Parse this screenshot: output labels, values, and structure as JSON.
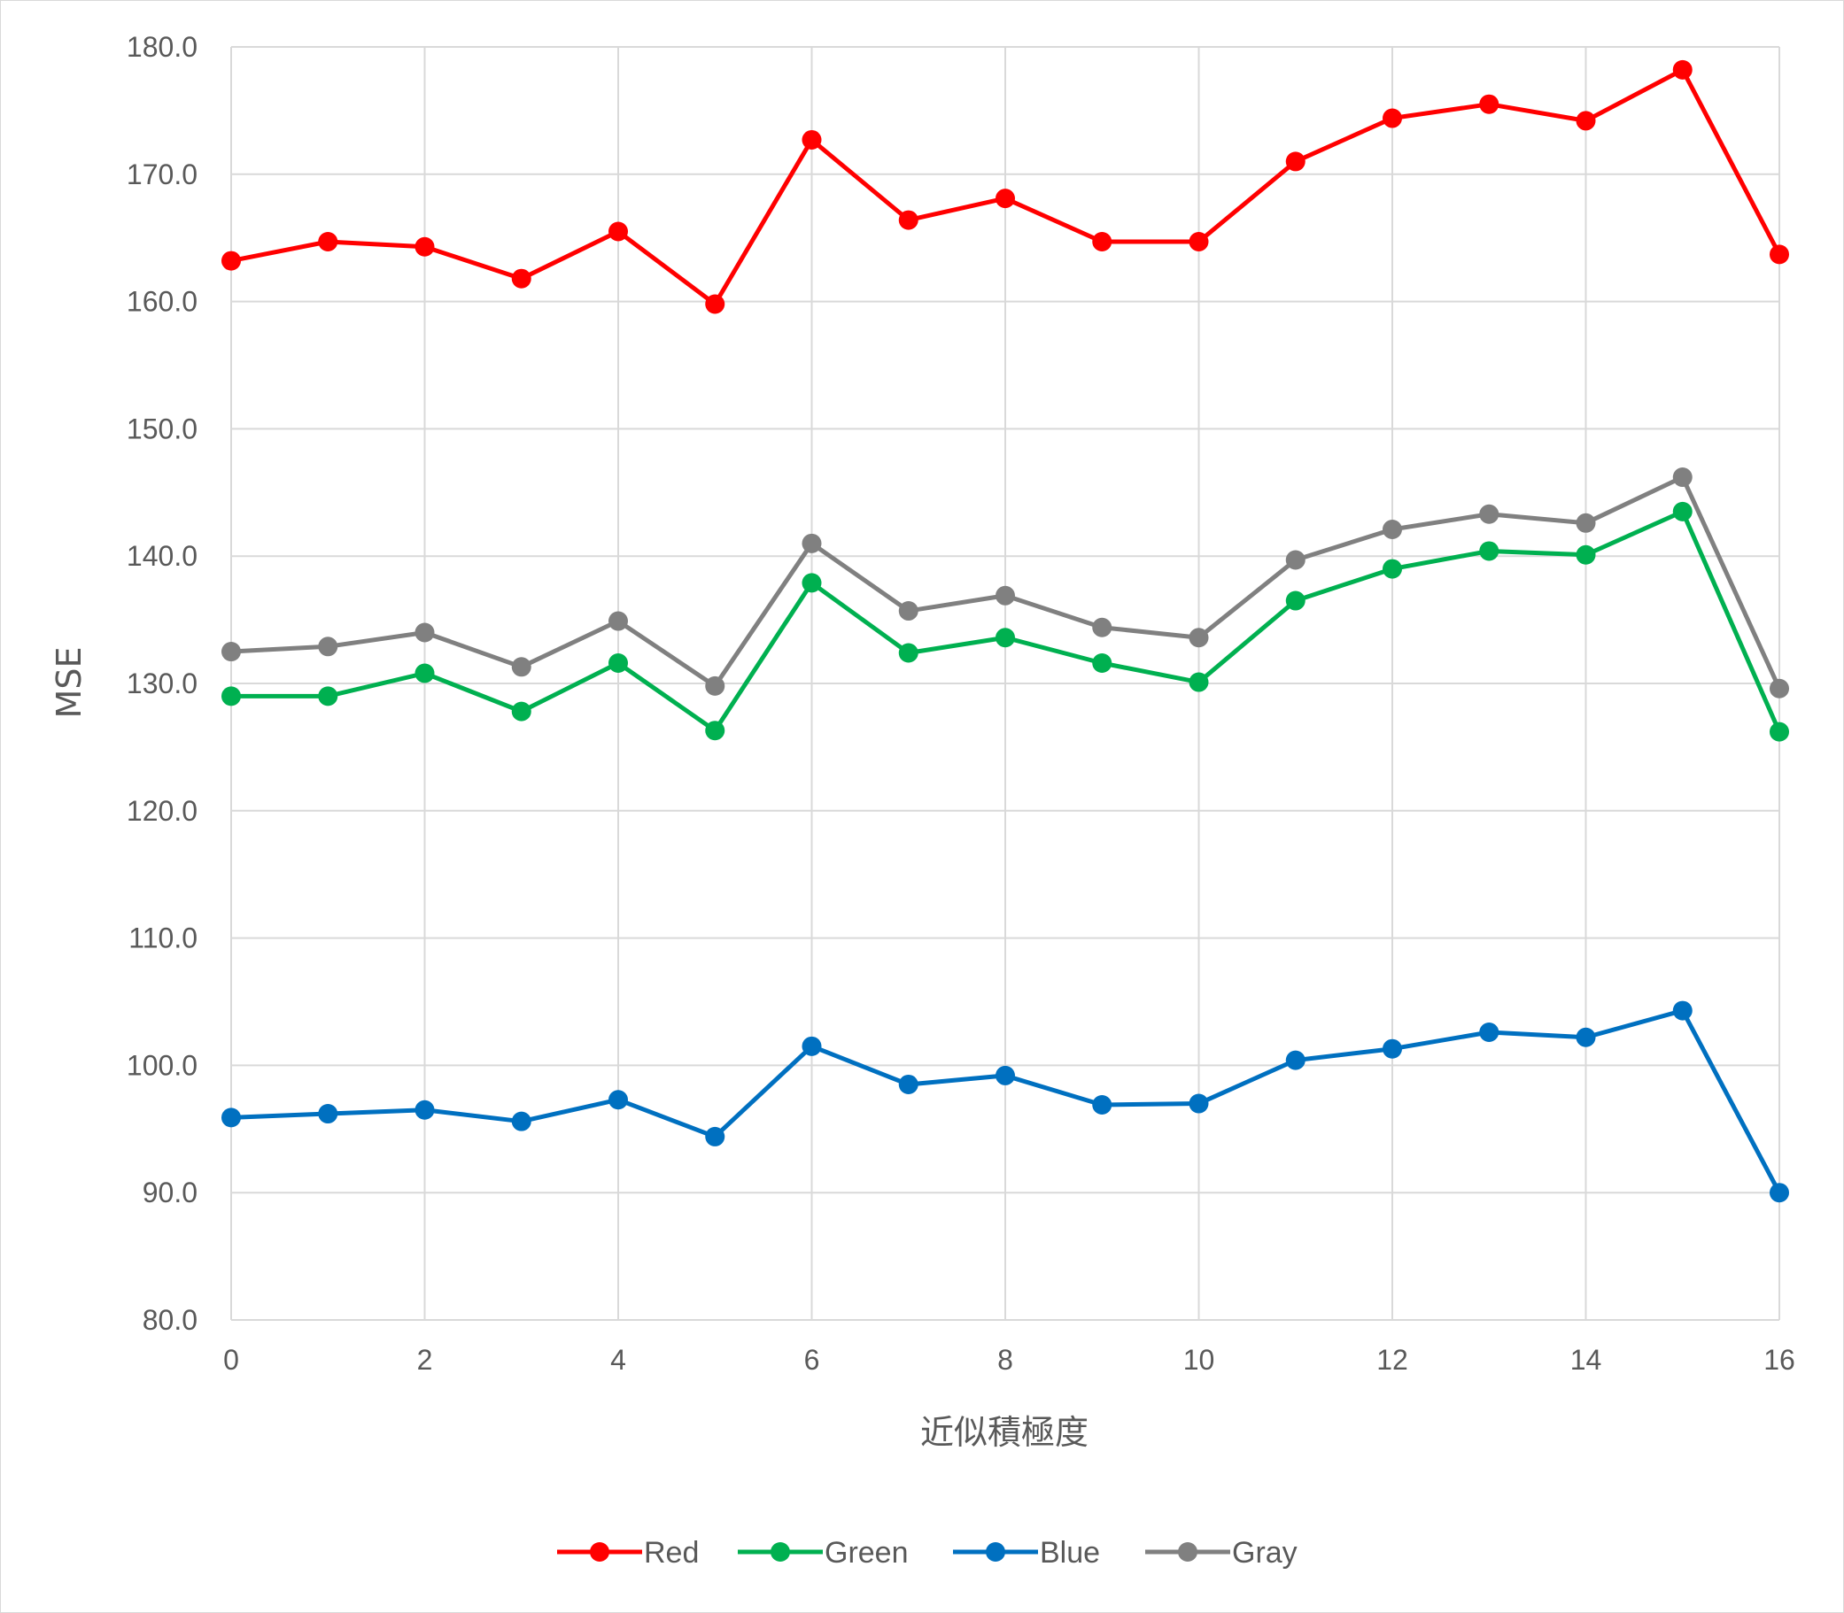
{
  "chart_data": {
    "type": "line",
    "title": "",
    "xlabel": "近似積極度",
    "ylabel": "MSE",
    "x": [
      0,
      1,
      2,
      3,
      4,
      5,
      6,
      7,
      8,
      9,
      10,
      11,
      12,
      13,
      14,
      15,
      16
    ],
    "xlim": [
      0,
      16
    ],
    "ylim": [
      80,
      180
    ],
    "x_ticks": [
      "0",
      "2",
      "4",
      "6",
      "8",
      "10",
      "12",
      "14",
      "16"
    ],
    "x_tick_values": [
      0,
      2,
      4,
      6,
      8,
      10,
      12,
      14,
      16
    ],
    "y_ticks": [
      "80.0",
      "90.0",
      "100.0",
      "110.0",
      "120.0",
      "130.0",
      "140.0",
      "150.0",
      "160.0",
      "170.0",
      "180.0"
    ],
    "y_tick_values": [
      80,
      90,
      100,
      110,
      120,
      130,
      140,
      150,
      160,
      170,
      180
    ],
    "grid": true,
    "legend_position": "bottom",
    "series": [
      {
        "name": "Red",
        "color": "#ff0000",
        "values": [
          163.2,
          164.7,
          164.3,
          161.8,
          165.5,
          159.8,
          172.7,
          166.4,
          168.1,
          164.7,
          164.7,
          171.0,
          174.4,
          175.5,
          174.2,
          178.2,
          163.7
        ]
      },
      {
        "name": "Green",
        "color": "#00b050",
        "values": [
          129.0,
          129.0,
          130.8,
          127.8,
          131.6,
          126.3,
          137.9,
          132.4,
          133.6,
          131.6,
          130.1,
          136.5,
          139.0,
          140.4,
          140.1,
          143.5,
          126.2
        ]
      },
      {
        "name": "Blue",
        "color": "#0070c0",
        "values": [
          95.9,
          96.2,
          96.5,
          95.6,
          97.3,
          94.4,
          101.5,
          98.5,
          99.2,
          96.9,
          97.0,
          100.4,
          101.3,
          102.6,
          102.2,
          104.3,
          90.0
        ]
      },
      {
        "name": "Gray",
        "color": "#808080",
        "values": [
          132.5,
          132.9,
          134.0,
          131.3,
          134.9,
          129.8,
          141.0,
          135.7,
          136.9,
          134.4,
          133.6,
          139.7,
          142.1,
          143.3,
          142.6,
          146.2,
          129.6
        ]
      }
    ]
  }
}
